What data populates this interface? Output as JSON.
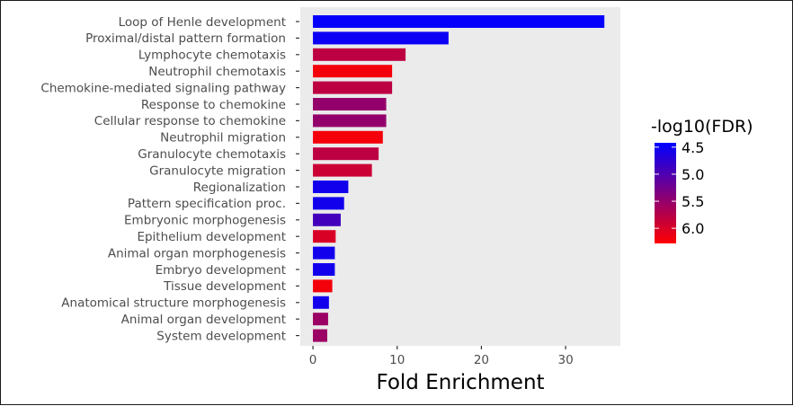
{
  "chart_data": {
    "type": "bar",
    "orientation": "horizontal",
    "title": "",
    "xlabel": "Fold Enrichment",
    "ylabel": "",
    "xlim": [
      -1.5,
      36.5
    ],
    "xticks": [
      0,
      10,
      20,
      30
    ],
    "grid": false,
    "background_color": "#ebebeb",
    "categories": [
      "Loop of Henle development",
      "Proximal/distal pattern formation",
      "Lymphocyte chemotaxis",
      "Neutrophil chemotaxis",
      "Chemokine-mediated signaling pathway",
      "Response to chemokine",
      "Cellular response to chemokine",
      "Neutrophil migration",
      "Granulocyte chemotaxis",
      "Granulocyte migration",
      "Regionalization",
      "Pattern specification proc.",
      "Embryonic morphogenesis",
      "Epithelium development",
      "Animal organ morphogenesis",
      "Embryo development",
      "Tissue development",
      "Anatomical structure morphogenesis",
      "Animal organ development",
      "System development"
    ],
    "values": [
      34.6,
      16.1,
      11.0,
      9.4,
      9.4,
      8.7,
      8.7,
      8.3,
      7.8,
      7.0,
      4.2,
      3.7,
      3.3,
      2.7,
      2.6,
      2.6,
      2.3,
      1.9,
      1.8,
      1.7
    ],
    "color_values": [
      4.45,
      4.5,
      5.8,
      6.2,
      5.8,
      5.5,
      5.5,
      6.2,
      5.8,
      5.9,
      4.55,
      4.55,
      4.9,
      6.0,
      4.55,
      4.55,
      6.2,
      4.55,
      5.55,
      5.55
    ],
    "legend": {
      "title": "-log10(FDR)",
      "placement": "right",
      "labels": [
        "4.5",
        "5.0",
        "5.5",
        "6.0"
      ],
      "label_values": [
        4.5,
        5.0,
        5.5,
        6.0
      ],
      "range": [
        4.42,
        6.28
      ],
      "low_color": "#0000ff",
      "high_color": "#ff0000"
    }
  }
}
